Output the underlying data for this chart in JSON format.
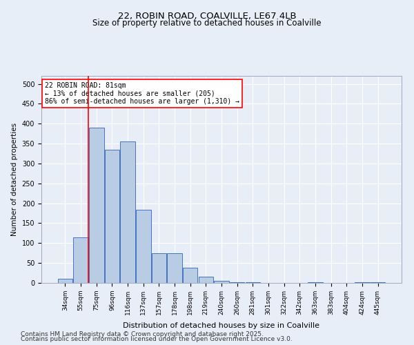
{
  "title1": "22, ROBIN ROAD, COALVILLE, LE67 4LB",
  "title2": "Size of property relative to detached houses in Coalville",
  "xlabel": "Distribution of detached houses by size in Coalville",
  "ylabel": "Number of detached properties",
  "categories": [
    "34sqm",
    "55sqm",
    "75sqm",
    "96sqm",
    "116sqm",
    "137sqm",
    "157sqm",
    "178sqm",
    "198sqm",
    "219sqm",
    "240sqm",
    "260sqm",
    "281sqm",
    "301sqm",
    "322sqm",
    "342sqm",
    "363sqm",
    "383sqm",
    "404sqm",
    "424sqm",
    "445sqm"
  ],
  "values": [
    10,
    115,
    390,
    335,
    355,
    183,
    75,
    75,
    38,
    15,
    5,
    2,
    1,
    0,
    0,
    0,
    2,
    0,
    0,
    2,
    1
  ],
  "bar_color": "#b8cce4",
  "bar_edge_color": "#4472c4",
  "vline_x": 1.5,
  "annotation_title": "22 ROBIN ROAD: 81sqm",
  "annotation_line1": "← 13% of detached houses are smaller (205)",
  "annotation_line2": "86% of semi-detached houses are larger (1,310) →",
  "footer1": "Contains HM Land Registry data © Crown copyright and database right 2025.",
  "footer2": "Contains public sector information licensed under the Open Government Licence v3.0.",
  "bg_color": "#e8eef8",
  "plot_bg_color": "#e8eef8",
  "ylim": [
    0,
    520
  ],
  "yticks": [
    0,
    50,
    100,
    150,
    200,
    250,
    300,
    350,
    400,
    450,
    500
  ]
}
